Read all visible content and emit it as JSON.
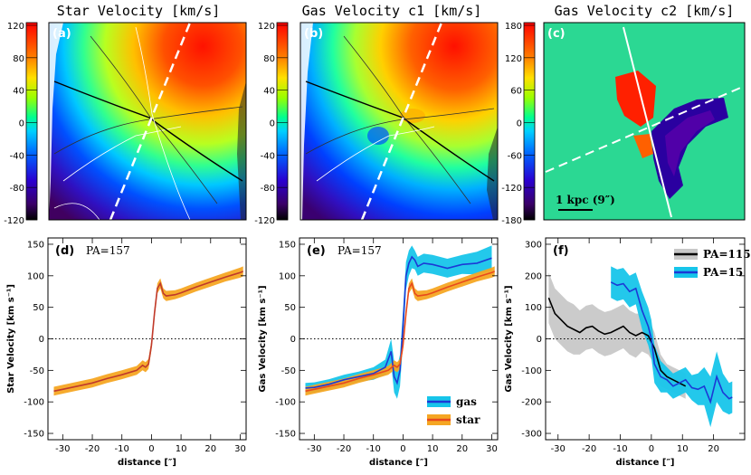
{
  "maps": [
    {
      "title": "Star Velocity [km/s]",
      "letter": "(a)",
      "cbar_ticks": [
        "120",
        "80",
        "40",
        "0",
        "-40",
        "-80",
        "-120"
      ],
      "vrange": [
        -120,
        120
      ]
    },
    {
      "title": "Gas Velocity c1 [km/s]",
      "letter": "(b)",
      "cbar_ticks": [
        "120",
        "80",
        "40",
        "0",
        "-40",
        "-80",
        "-120"
      ],
      "vrange": [
        -120,
        120
      ]
    },
    {
      "title": "Gas Velocity c2 [km/s]",
      "letter": "(c)",
      "cbar_ticks": [
        "180",
        "120",
        "60",
        "0",
        "-60",
        "-120",
        "-180"
      ],
      "vrange": [
        -180,
        180
      ],
      "scalebar_label": "1 kpc (9″)"
    }
  ],
  "chart_data": [
    {
      "type": "line",
      "letter": "(d)",
      "annotation": "PA=157",
      "xlabel": "distance [″]",
      "ylabel": "Star Velocity [km s⁻¹]",
      "xlim": [
        -35,
        32
      ],
      "ylim": [
        -160,
        160
      ],
      "xticks": [
        -30,
        -20,
        -10,
        0,
        10,
        20,
        30
      ],
      "yticks": [
        -150,
        -100,
        -50,
        0,
        50,
        100,
        150
      ],
      "series": [
        {
          "name": "star",
          "color": "#c0392b",
          "band_color": "#f5a623",
          "x": [
            -33,
            -30,
            -25,
            -20,
            -15,
            -10,
            -5,
            -3,
            -2,
            -1,
            0,
            1,
            2,
            3,
            4,
            5,
            8,
            10,
            15,
            20,
            25,
            30,
            31
          ],
          "y": [
            -83,
            -80,
            -75,
            -70,
            -63,
            -57,
            -50,
            -42,
            -45,
            -40,
            -10,
            40,
            80,
            88,
            72,
            68,
            70,
            73,
            82,
            90,
            98,
            105,
            107
          ],
          "band": [
            7,
            7,
            7,
            7,
            7,
            7,
            7,
            8,
            8,
            8,
            8,
            8,
            8,
            8,
            8,
            8,
            7,
            7,
            7,
            7,
            7,
            8,
            8
          ]
        }
      ]
    },
    {
      "type": "line",
      "letter": "(e)",
      "annotation": "PA=157",
      "xlabel": "distance [″]",
      "ylabel": "Gas Velocity [km s⁻¹]",
      "xlim": [
        -35,
        32
      ],
      "ylim": [
        -160,
        160
      ],
      "xticks": [
        -30,
        -20,
        -10,
        0,
        10,
        20,
        30
      ],
      "yticks": [
        -150,
        -100,
        -50,
        0,
        50,
        100,
        150
      ],
      "legend": [
        {
          "label": "gas",
          "color": "#1c39d6",
          "band_color": "#17c5ea"
        },
        {
          "label": "star",
          "color": "#e8491d",
          "band_color": "#f5a623"
        }
      ],
      "series": [
        {
          "name": "gas",
          "color": "#1c39d6",
          "band_color": "#17c5ea",
          "x": [
            -33,
            -30,
            -25,
            -20,
            -15,
            -10,
            -6,
            -4,
            -3,
            -2,
            -1,
            0,
            1,
            2,
            3,
            4,
            5,
            7,
            10,
            15,
            20,
            25,
            30
          ],
          "y": [
            -78,
            -77,
            -72,
            -65,
            -60,
            -55,
            -45,
            -20,
            -60,
            -70,
            -50,
            20,
            100,
            120,
            130,
            125,
            115,
            120,
            118,
            112,
            118,
            120,
            128
          ],
          "band": [
            8,
            8,
            8,
            8,
            8,
            10,
            12,
            20,
            25,
            25,
            25,
            25,
            22,
            20,
            18,
            15,
            15,
            15,
            15,
            15,
            15,
            18,
            20
          ]
        },
        {
          "name": "star",
          "color": "#e8491d",
          "band_color": "#f5a623",
          "x": [
            -33,
            -30,
            -25,
            -20,
            -15,
            -10,
            -5,
            -3,
            -2,
            -1,
            0,
            1,
            2,
            3,
            4,
            5,
            8,
            10,
            15,
            20,
            25,
            30,
            31
          ],
          "y": [
            -83,
            -80,
            -75,
            -70,
            -63,
            -57,
            -50,
            -42,
            -45,
            -40,
            -10,
            40,
            80,
            88,
            72,
            68,
            70,
            73,
            82,
            90,
            98,
            105,
            107
          ],
          "band": [
            7,
            7,
            7,
            7,
            7,
            7,
            7,
            8,
            8,
            8,
            8,
            8,
            8,
            8,
            8,
            8,
            7,
            7,
            7,
            7,
            7,
            8,
            8
          ]
        }
      ]
    },
    {
      "type": "line",
      "letter": "(f)",
      "xlabel": "distance [″]",
      "ylabel": "Gas Velocity [km s⁻¹]",
      "xlim": [
        -34,
        30
      ],
      "ylim": [
        -320,
        320
      ],
      "xticks": [
        -30,
        -20,
        -10,
        0,
        10,
        20
      ],
      "yticks": [
        -300,
        -200,
        -100,
        0,
        100,
        200,
        300
      ],
      "legend": [
        {
          "label": "PA=115",
          "color": "#000000",
          "band_color": "#c8c8c8"
        },
        {
          "label": "PA=15",
          "color": "#1c39d6",
          "band_color": "#17c5ea"
        }
      ],
      "series": [
        {
          "name": "PA=115",
          "color": "#000000",
          "band_color": "#c8c8c8",
          "x": [
            -33,
            -31,
            -29,
            -27,
            -25,
            -23,
            -21,
            -19,
            -17,
            -15,
            -13,
            -11,
            -9,
            -7,
            -5,
            -3,
            -1,
            1,
            3,
            5,
            7,
            9,
            11
          ],
          "y": [
            130,
            80,
            60,
            40,
            30,
            20,
            35,
            40,
            25,
            15,
            20,
            30,
            40,
            20,
            10,
            20,
            10,
            -30,
            -100,
            -120,
            -130,
            -140,
            -150
          ],
          "band": [
            80,
            80,
            80,
            80,
            80,
            70,
            70,
            70,
            70,
            70,
            70,
            70,
            70,
            70,
            70,
            60,
            60,
            50,
            50,
            40,
            40,
            40,
            40
          ]
        },
        {
          "name": "PA=15",
          "color": "#1c39d6",
          "band_color": "#17c5ea",
          "x": [
            -13,
            -11,
            -9,
            -7,
            -5,
            -3,
            -1,
            0,
            1,
            3,
            5,
            7,
            9,
            11,
            13,
            15,
            17,
            19,
            21,
            23,
            25,
            26
          ],
          "y": [
            180,
            170,
            175,
            150,
            160,
            90,
            40,
            0,
            -80,
            -120,
            -130,
            -150,
            -140,
            -130,
            -155,
            -160,
            -150,
            -200,
            -120,
            -170,
            -190,
            -185
          ],
          "band": [
            50,
            50,
            50,
            50,
            50,
            60,
            60,
            60,
            60,
            50,
            40,
            40,
            40,
            40,
            40,
            50,
            60,
            80,
            80,
            60,
            50,
            50
          ]
        }
      ]
    }
  ]
}
